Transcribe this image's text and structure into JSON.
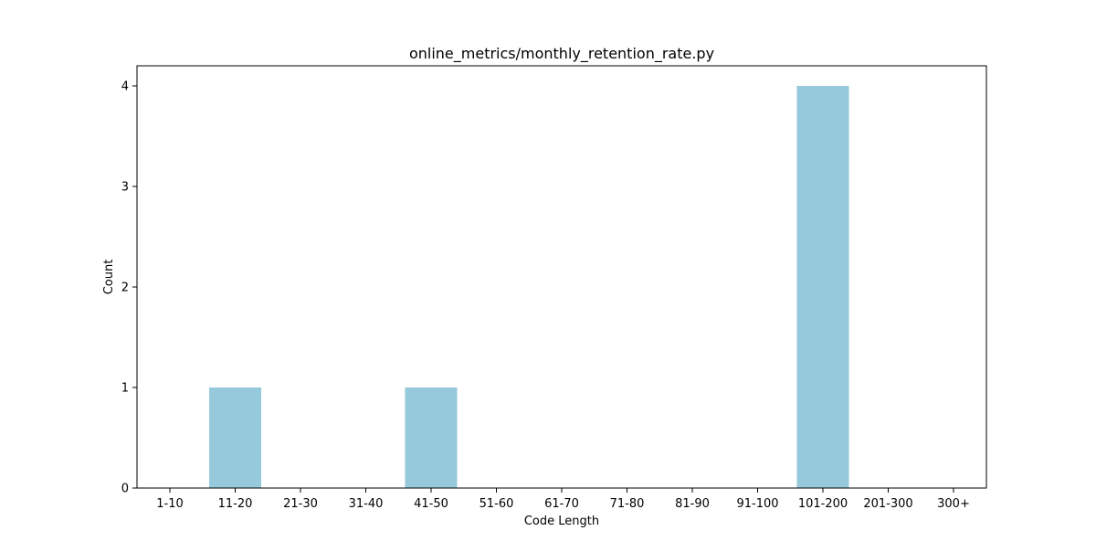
{
  "chart_data": {
    "type": "bar",
    "title": "online_metrics/monthly_retention_rate.py",
    "xlabel": "Code Length",
    "ylabel": "Count",
    "categories": [
      "1-10",
      "11-20",
      "21-30",
      "31-40",
      "41-50",
      "51-60",
      "61-70",
      "71-80",
      "81-90",
      "91-100",
      "101-200",
      "201-300",
      "300+"
    ],
    "values": [
      0,
      1,
      0,
      0,
      1,
      0,
      0,
      0,
      0,
      0,
      4,
      0,
      0
    ],
    "yticks": [
      0,
      1,
      2,
      3,
      4
    ],
    "ylim": [
      0,
      4.2
    ],
    "grid": false,
    "bar_color": "#96c9dc"
  }
}
